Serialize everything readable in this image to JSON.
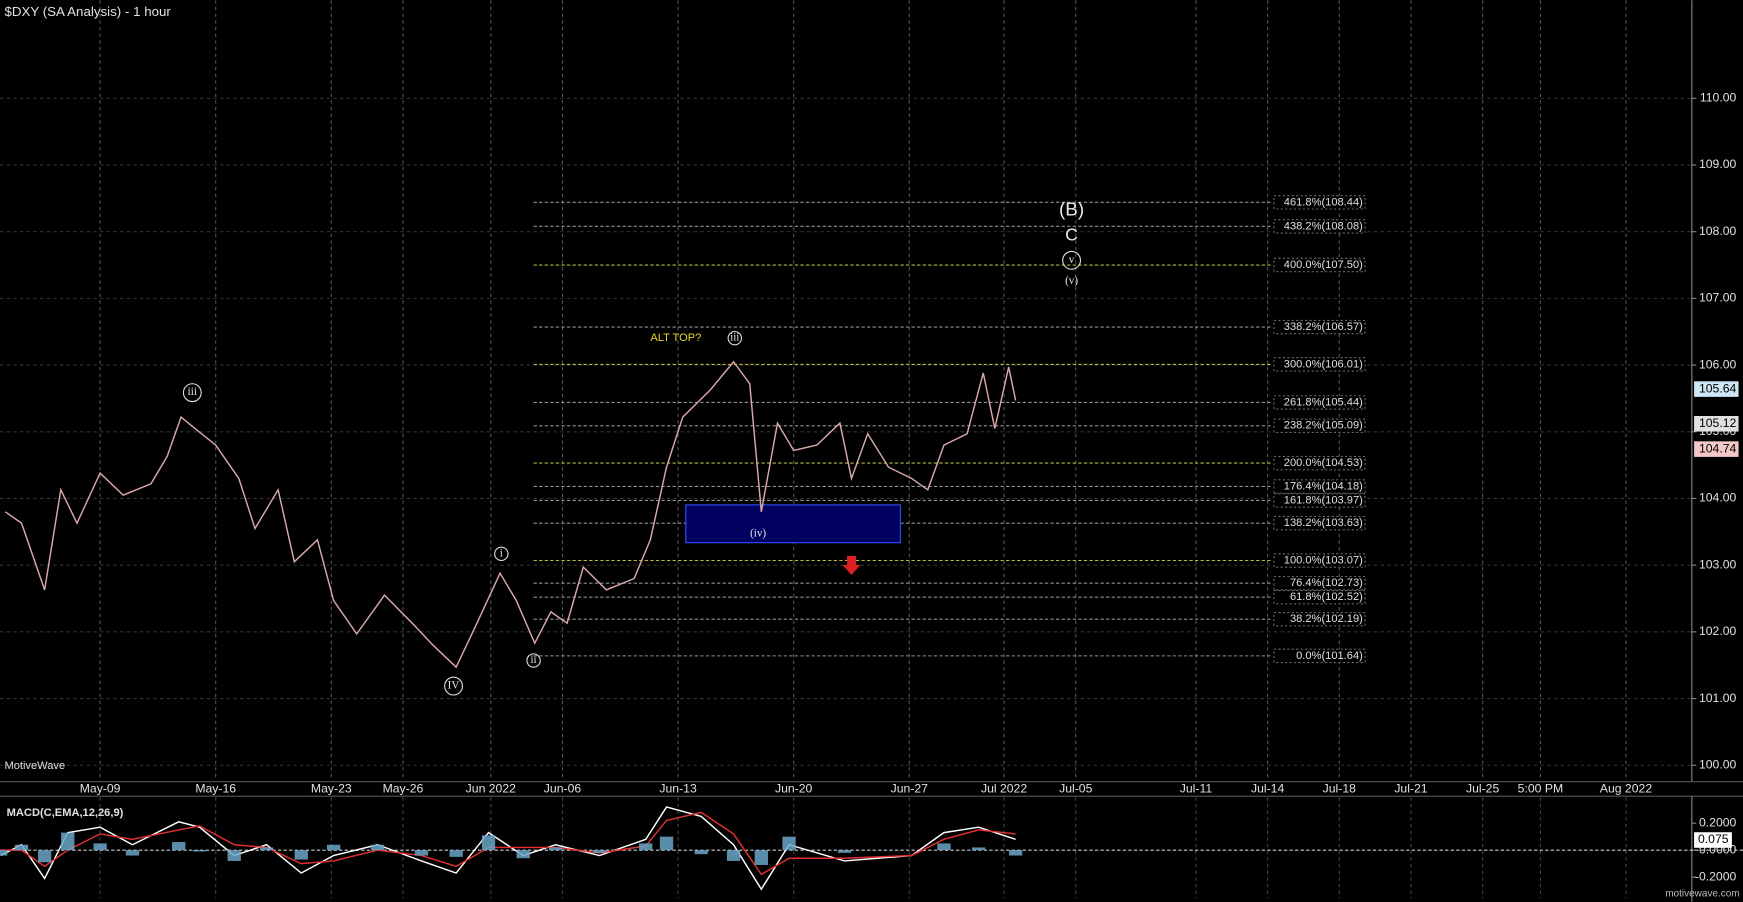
{
  "chart_data": {
    "type": "line",
    "title": "$DXY (SA Analysis) - 1 hour",
    "branding": "MotiveWave",
    "watermark": "motivewave.com",
    "xlim": [
      -4.33,
      68.85
    ],
    "xticks": [
      {
        "value": 0,
        "label": "May-09"
      },
      {
        "value": 5,
        "label": "May-16"
      },
      {
        "value": 10,
        "label": "May-23"
      },
      {
        "value": 13.1,
        "label": "May-26"
      },
      {
        "value": 16.9,
        "label": "Jun 2022"
      },
      {
        "value": 20,
        "label": "Jun-06"
      },
      {
        "value": 25,
        "label": "Jun-13"
      },
      {
        "value": 30,
        "label": "Jun-20"
      },
      {
        "value": 35,
        "label": "Jun-27"
      },
      {
        "value": 39.1,
        "label": "Jul 2022"
      },
      {
        "value": 42.2,
        "label": "Jul-05"
      },
      {
        "value": 47.4,
        "label": "Jul-11"
      },
      {
        "value": 50.5,
        "label": "Jul-14"
      },
      {
        "value": 53.6,
        "label": "Jul-18"
      },
      {
        "value": 56.7,
        "label": "Jul-21"
      },
      {
        "value": 59.8,
        "label": "Jul-25"
      },
      {
        "value": 62.3,
        "label": "5:00 PM"
      },
      {
        "value": 66,
        "label": "Aug 2022"
      }
    ],
    "ylim": [
      99.77,
      111.47
    ],
    "yticks": [
      {
        "value": 100,
        "label": "100.00"
      },
      {
        "value": 101,
        "label": "101.00"
      },
      {
        "value": 102,
        "label": "102.00"
      },
      {
        "value": 103,
        "label": "103.00"
      },
      {
        "value": 104,
        "label": "104.00"
      },
      {
        "value": 105,
        "label": "105.00"
      },
      {
        "value": 106,
        "label": "106.00"
      },
      {
        "value": 107,
        "label": "107.00"
      },
      {
        "value": 108,
        "label": "108.00"
      },
      {
        "value": 109,
        "label": "109.00"
      },
      {
        "value": 110,
        "label": "110.00"
      }
    ],
    "grid": true,
    "series": [
      {
        "name": "$DXY",
        "color": "#d9a8a8",
        "x": [
          -4.1,
          -3.4,
          -2.4,
          -1.7,
          -1.0,
          0,
          1.0,
          2.2,
          2.9,
          3.5,
          4.1,
          5.0,
          6.0,
          6.7,
          7.7,
          8.4,
          9.4,
          10.1,
          11.1,
          12.3,
          13.5,
          14.4,
          15.4,
          16.3,
          17.3,
          18.0,
          18.8,
          19.5,
          20.2,
          20.9,
          21.9,
          23.1,
          23.8,
          24.5,
          25.2,
          26.4,
          27.4,
          28.1,
          28.6,
          29.3,
          30.0,
          31.0,
          32.0,
          32.5,
          33.2,
          34.1,
          35.1,
          35.8,
          36.5,
          37.5,
          38.2,
          38.7,
          39.3,
          39.6
        ],
        "values": [
          103.8,
          103.63,
          102.63,
          104.13,
          103.63,
          104.38,
          104.05,
          104.22,
          104.63,
          105.22,
          105.05,
          104.8,
          104.3,
          103.55,
          104.13,
          103.05,
          103.38,
          102.47,
          101.97,
          102.55,
          102.13,
          101.8,
          101.47,
          102.13,
          102.88,
          102.47,
          101.83,
          102.3,
          102.13,
          102.97,
          102.63,
          102.8,
          103.38,
          104.47,
          105.22,
          105.63,
          106.05,
          105.72,
          103.8,
          105.13,
          104.72,
          104.8,
          105.13,
          104.3,
          104.97,
          104.47,
          104.3,
          104.13,
          104.8,
          104.97,
          105.88,
          105.05,
          105.97,
          105.47
        ]
      }
    ],
    "fib_levels": [
      {
        "label": "461.8%(108.44)",
        "value": 108.44
      },
      {
        "label": "438.2%(108.08)",
        "value": 108.08
      },
      {
        "label": "400.0%(107.50)",
        "value": 107.5
      },
      {
        "label": "338.2%(106.57)",
        "value": 106.57
      },
      {
        "label": "300.0%(106.01)",
        "value": 106.01
      },
      {
        "label": "261.8%(105.44)",
        "value": 105.44
      },
      {
        "label": "238.2%(105.09)",
        "value": 105.09
      },
      {
        "label": "200.0%(104.53)",
        "value": 104.53
      },
      {
        "label": "176.4%(104.18)",
        "value": 104.18
      },
      {
        "label": "161.8%(103.97)",
        "value": 103.97
      },
      {
        "label": "138.2%(103.63)",
        "value": 103.63
      },
      {
        "label": "100.0%(103.07)",
        "value": 103.07
      },
      {
        "label": "76.4%(102.73)",
        "value": 102.73
      },
      {
        "label": "61.8%(102.52)",
        "value": 102.52
      },
      {
        "label": "38.2%(102.19)",
        "value": 102.19
      },
      {
        "label": "0.0%(101.64)",
        "value": 101.64
      }
    ],
    "fib_colors": {
      "key": "#b8b840",
      "other": "#909090"
    },
    "price_tags": [
      {
        "label": "105.64",
        "value": 105.64,
        "color": "#cfe6f5"
      },
      {
        "label": "105.12",
        "value": 105.12,
        "color": "#e0e0e0"
      },
      {
        "label": "104.74",
        "value": 104.74,
        "color": "#f5c8c8"
      }
    ],
    "annotations": [
      "iii",
      "IV",
      "i",
      "ii",
      "iii",
      "(iv)",
      "ALT TOP?",
      "(B)",
      "C",
      "v",
      "(v)"
    ],
    "macd": {
      "title": "MACD(C,EMA,12,26,9)",
      "ylim": [
        -0.358,
        0.392
      ],
      "yticks": [
        {
          "value": 0.2,
          "label": "0.2000"
        },
        {
          "value": 0,
          "label": "0.0000"
        },
        {
          "value": -0.2,
          "label": "-0.2000"
        }
      ],
      "current": {
        "value": 0.075,
        "label": "0.075"
      },
      "x": [
        -4.3,
        -3.4,
        -2.4,
        -1.4,
        0,
        1.4,
        3.4,
        4.3,
        5.8,
        7.2,
        8.7,
        10.1,
        12.0,
        13.9,
        15.4,
        16.8,
        18.3,
        19.7,
        21.6,
        23.6,
        24.5,
        26.0,
        27.4,
        28.6,
        29.8,
        32.2,
        35.1,
        36.5,
        38.0,
        39.6
      ],
      "series": [
        {
          "name": "MACD",
          "color": "#ffffff",
          "values": [
            -0.04,
            0.04,
            -0.21,
            0.13,
            0.17,
            0.04,
            0.21,
            0.17,
            -0.04,
            0.04,
            -0.17,
            -0.04,
            0.04,
            -0.08,
            -0.17,
            0.13,
            -0.04,
            0.04,
            -0.04,
            0.08,
            0.32,
            0.25,
            0.04,
            -0.29,
            0.04,
            -0.08,
            -0.04,
            0.13,
            0.17,
            0.08
          ]
        },
        {
          "name": "Signal",
          "color": "#e03030",
          "values": [
            0.0,
            0.0,
            -0.12,
            0.0,
            0.12,
            0.08,
            0.15,
            0.18,
            0.04,
            0.02,
            -0.1,
            -0.08,
            0.0,
            -0.04,
            -0.12,
            0.02,
            0.02,
            0.02,
            -0.02,
            0.03,
            0.22,
            0.28,
            0.12,
            -0.18,
            -0.06,
            -0.06,
            -0.04,
            0.08,
            0.15,
            0.12
          ]
        },
        {
          "name": "Histogram",
          "color": "#6aa6c8",
          "values": [
            -0.04,
            0.04,
            -0.09,
            0.13,
            0.05,
            -0.04,
            0.06,
            -0.01,
            -0.08,
            0.02,
            -0.07,
            0.04,
            0.04,
            -0.04,
            -0.05,
            0.11,
            -0.06,
            0.02,
            -0.02,
            0.05,
            0.1,
            -0.03,
            -0.08,
            -0.11,
            0.1,
            -0.02,
            0,
            0.05,
            0.02,
            -0.04
          ]
        }
      ]
    }
  }
}
